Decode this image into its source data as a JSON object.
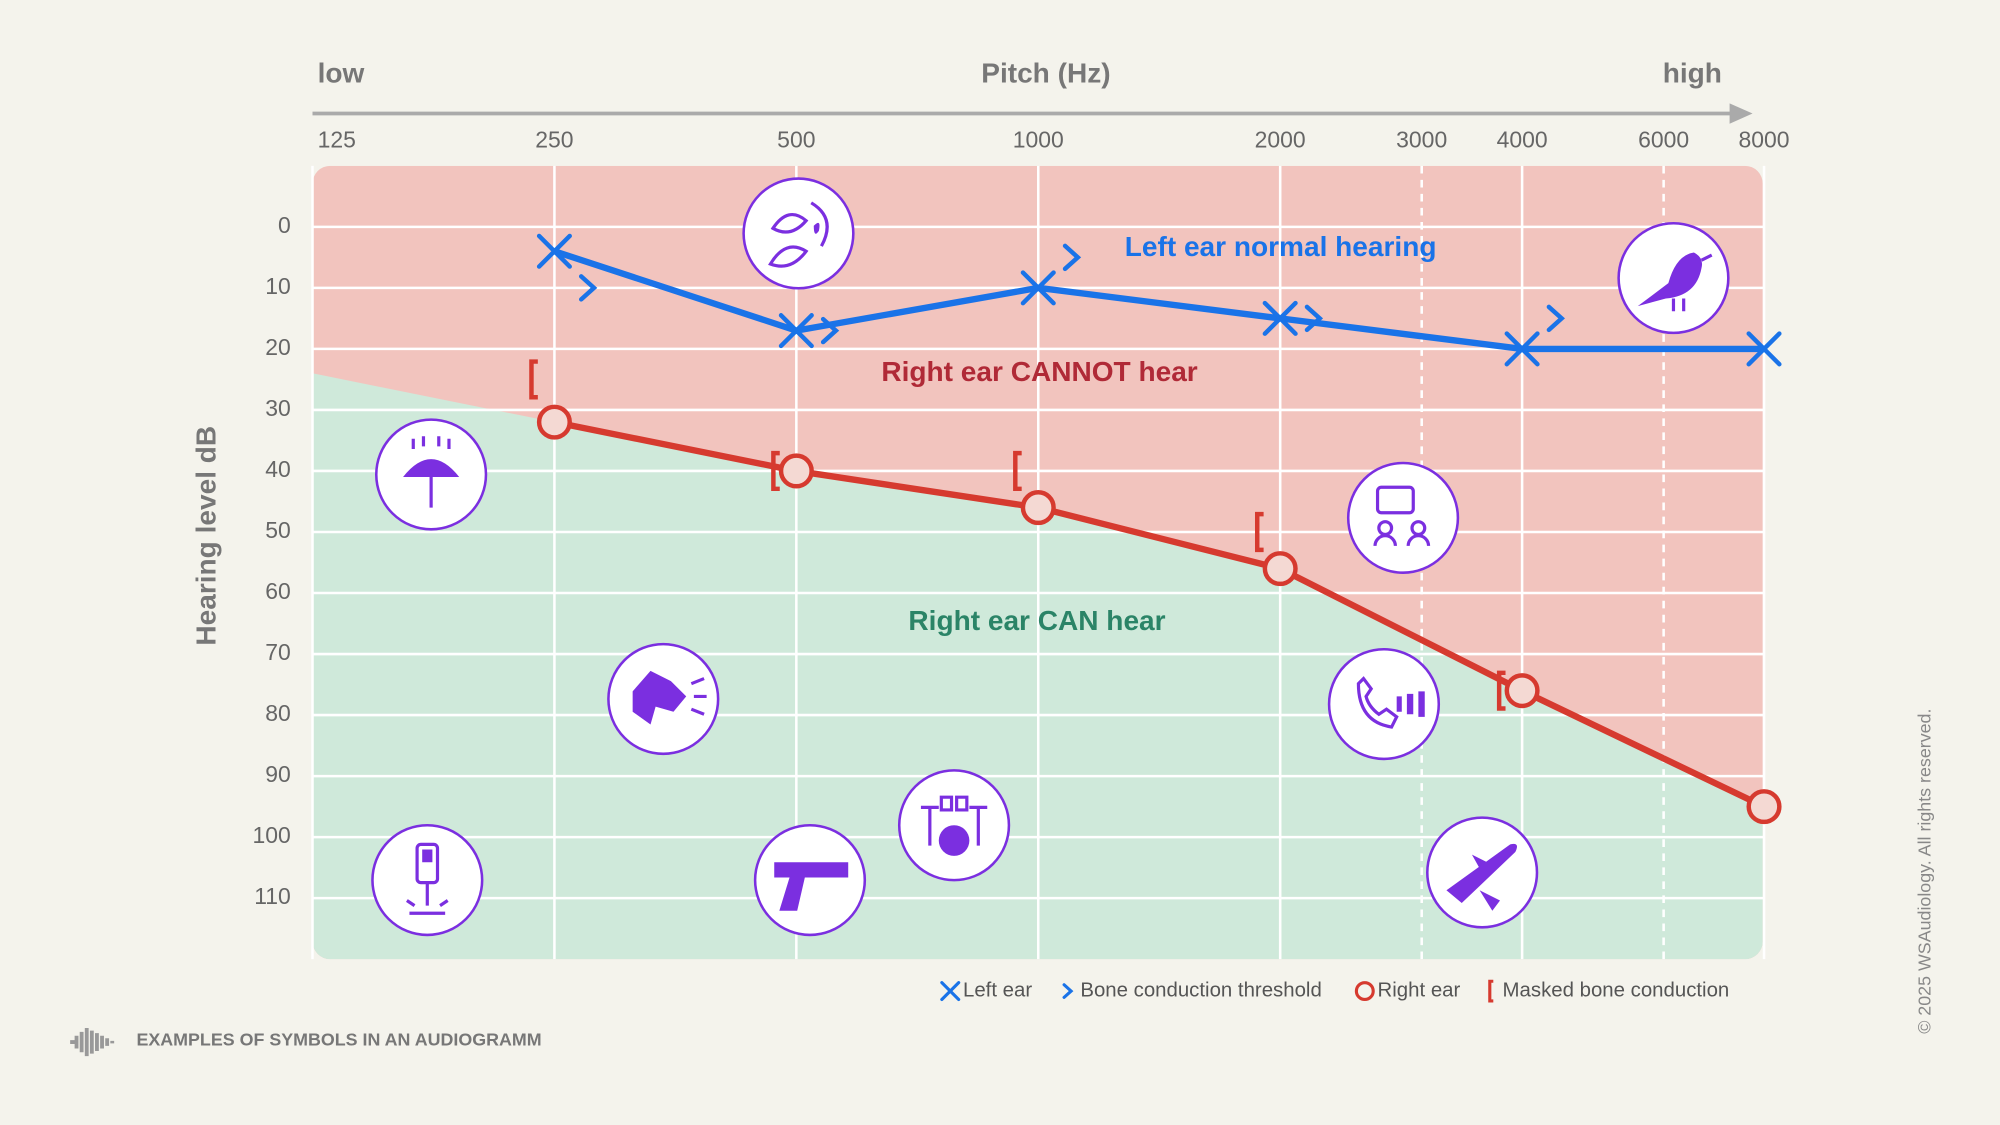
{
  "chart_data": {
    "type": "audiogram",
    "x_label": "Pitch (Hz)",
    "x_low_label": "low",
    "x_high_label": "high",
    "y_label": "Hearing level dB",
    "xscale": "log",
    "xlim": [
      125,
      8000
    ],
    "xticks": [
      125,
      250,
      500,
      1000,
      2000,
      3000,
      4000,
      6000,
      8000
    ],
    "ylim": [
      -10,
      120
    ],
    "yticks": [
      0,
      10,
      20,
      30,
      40,
      50,
      60,
      70,
      80,
      90,
      100,
      110
    ],
    "y_inverted": true,
    "grid": true,
    "series": [
      {
        "name": "Left ear",
        "color": "#1a73e8",
        "marker": "x",
        "line": true,
        "x": [
          250,
          500,
          1000,
          2000,
          4000,
          8000
        ],
        "values": [
          4,
          17,
          10,
          15,
          20,
          20
        ]
      },
      {
        "name": "Bone conduction threshold",
        "color": "#1a73e8",
        "marker": "chevron",
        "line": false,
        "x": [
          250,
          500,
          1000,
          2000,
          4000
        ],
        "values": [
          10,
          17,
          5,
          15,
          15
        ]
      },
      {
        "name": "Right ear",
        "color": "#d63a2f",
        "marker": "o",
        "line": true,
        "x": [
          250,
          500,
          1000,
          2000,
          4000,
          8000
        ],
        "values": [
          32,
          40,
          46,
          56,
          76,
          95
        ]
      },
      {
        "name": "Masked bone conduction",
        "color": "#d63a2f",
        "marker": "bracket",
        "line": false,
        "x": [
          250,
          500,
          1000,
          2000,
          4000
        ],
        "values": [
          25,
          40,
          40,
          50,
          76
        ]
      }
    ],
    "annotations": [
      "Left ear normal hearing",
      "Right ear CANNOT hear",
      "Right ear CAN hear"
    ]
  },
  "footer": {
    "caption": "EXAMPLES OF SYMBOLS IN AN AUDIOGRAMM",
    "copyright": "© 2025 WSAudiology. All rights reserved."
  }
}
